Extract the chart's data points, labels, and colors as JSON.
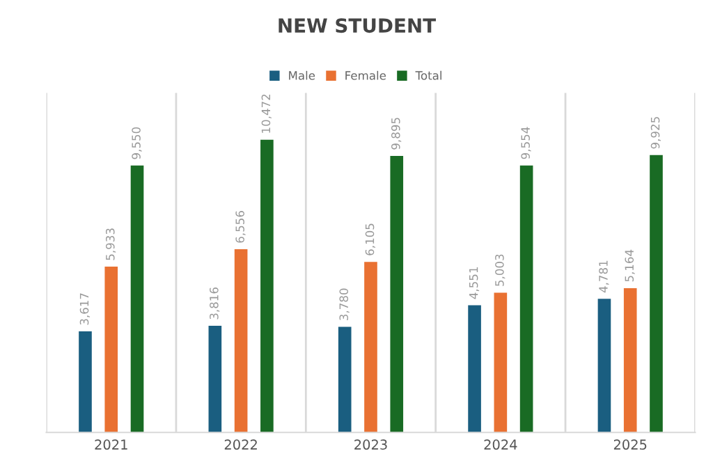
{
  "chart_data": {
    "type": "bar",
    "title": "NEW STUDENT",
    "categories": [
      "2021",
      "2022",
      "2023",
      "2024",
      "2025"
    ],
    "series": [
      {
        "name": "Male",
        "color": "#1a5e80",
        "values": [
          3617,
          3816,
          3780,
          4551,
          4781
        ],
        "value_labels": [
          "3,617",
          "3,816",
          "3,780",
          "4,551",
          "4,781"
        ]
      },
      {
        "name": "Female",
        "color": "#e97132",
        "values": [
          5933,
          6556,
          6105,
          5003,
          5164
        ],
        "value_labels": [
          "5,933",
          "6,556",
          "6,105",
          "5,003",
          "5,164"
        ]
      },
      {
        "name": "Total",
        "color": "#196b24",
        "values": [
          9550,
          10472,
          9895,
          9554,
          9925
        ],
        "value_labels": [
          "9,550",
          "10,472",
          "9,895",
          "9,554",
          "9,925"
        ]
      }
    ],
    "legend": "top",
    "grid": "x",
    "tick_labels": "x"
  }
}
